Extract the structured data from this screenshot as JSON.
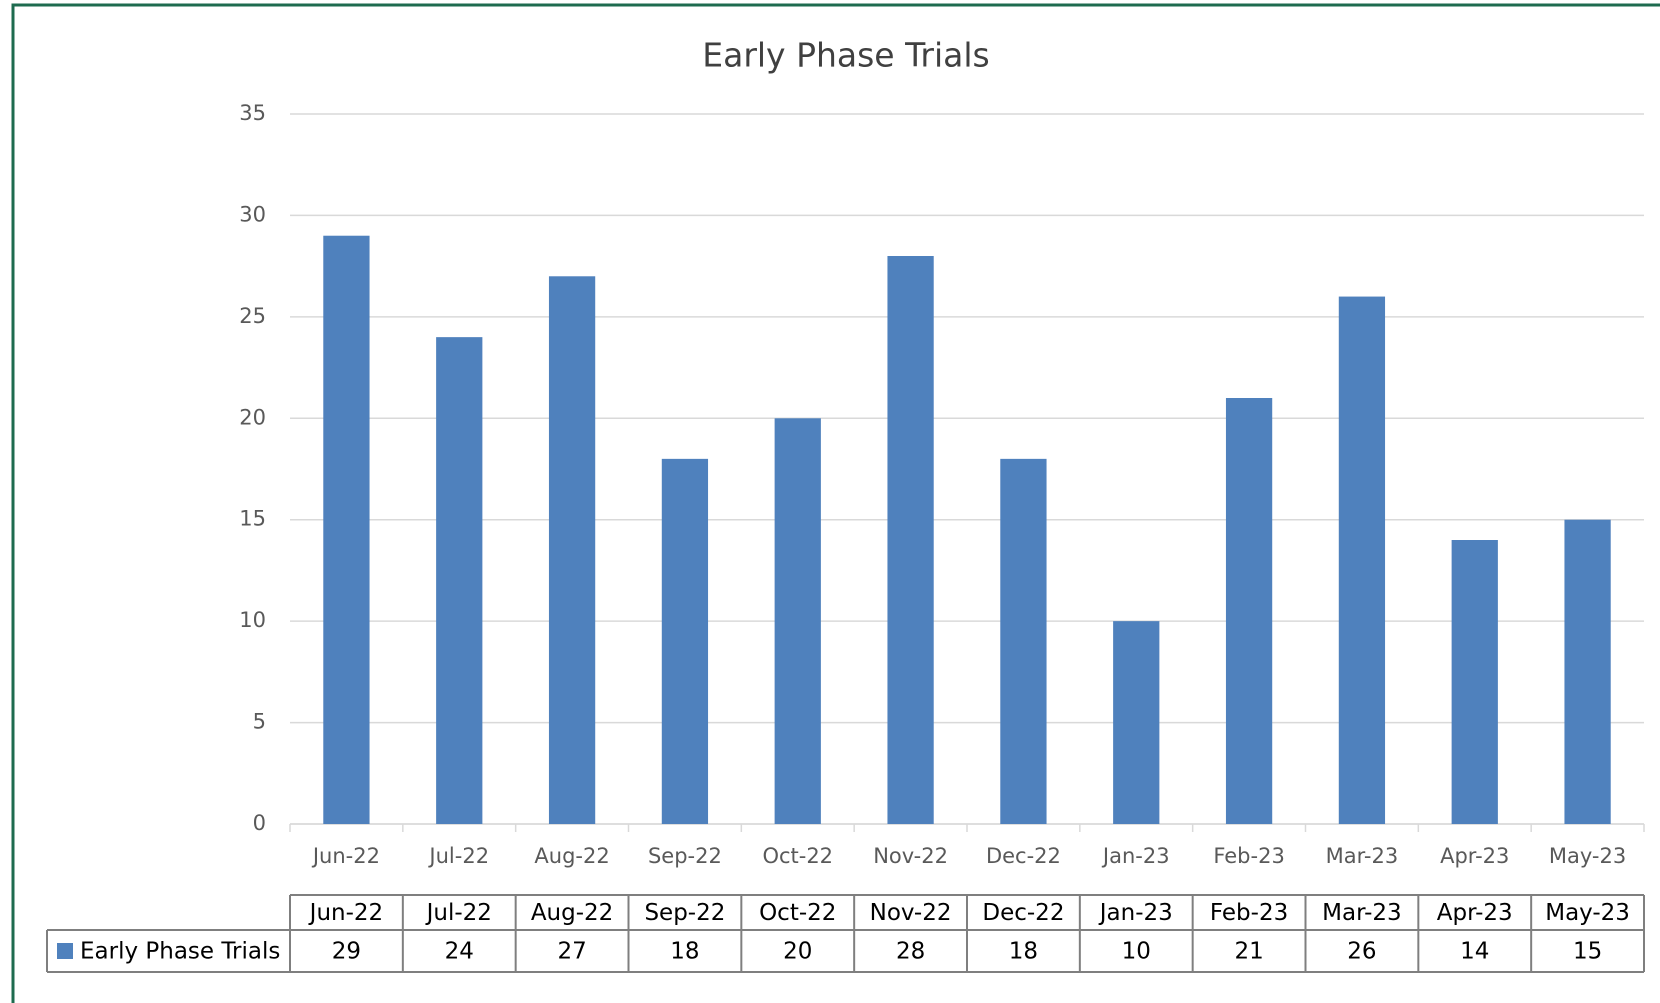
{
  "chart_data": {
    "type": "bar",
    "title": "Early Phase Trials",
    "categories": [
      "Jun-22",
      "Jul-22",
      "Aug-22",
      "Sep-22",
      "Oct-22",
      "Nov-22",
      "Dec-22",
      "Jan-23",
      "Feb-23",
      "Mar-23",
      "Apr-23",
      "May-23"
    ],
    "series": [
      {
        "name": "Early Phase Trials",
        "color": "#4f81bd",
        "values": [
          29,
          24,
          27,
          18,
          20,
          28,
          18,
          10,
          21,
          26,
          14,
          15
        ]
      }
    ],
    "ylim": [
      0,
      35
    ],
    "yticks": [
      0,
      5,
      10,
      15,
      20,
      25,
      30,
      35
    ],
    "grid": true,
    "data_table": true
  }
}
